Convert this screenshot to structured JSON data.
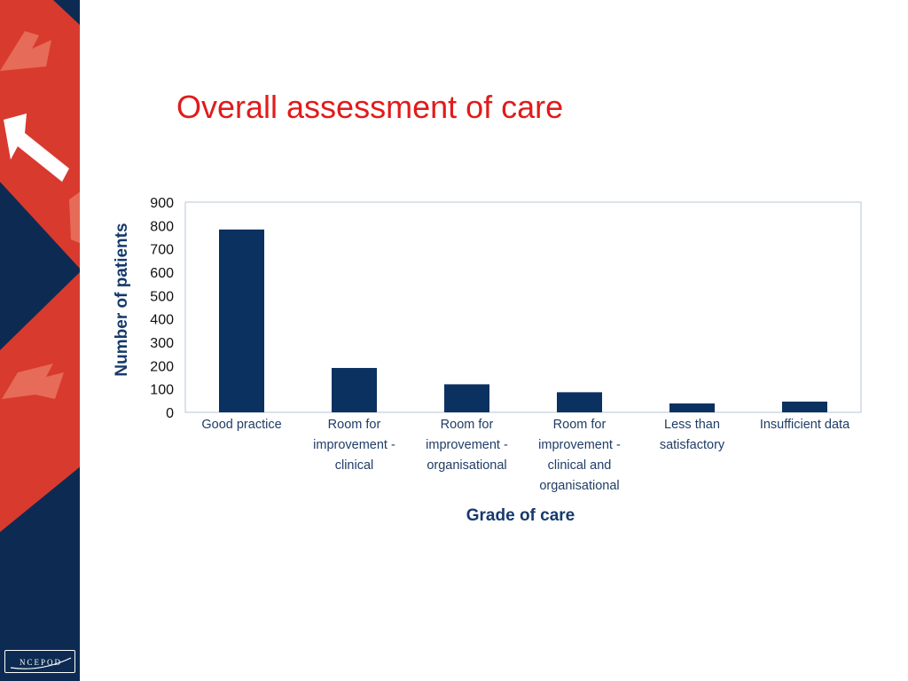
{
  "slide": {
    "title": "Overall assessment of care",
    "logo_text": "NCEPOD"
  },
  "colors": {
    "sidebar_navy": "#0d2b52",
    "sidebar_red": "#d93a2e",
    "title_red": "#e11b1b",
    "bar_navy": "#0a3160",
    "axis_label_navy": "#163a6b"
  },
  "icons": [
    "arrow-up-left-icon",
    "arrow-up-right-icon"
  ],
  "chart_data": {
    "type": "bar",
    "title": "",
    "xlabel": "Grade of care",
    "ylabel": "Number of patients",
    "ylim": [
      0,
      900
    ],
    "yticks": [
      0,
      100,
      200,
      300,
      400,
      500,
      600,
      700,
      800,
      900
    ],
    "grid": false,
    "legend": "none",
    "categories": [
      "Good practice",
      "Room for improvement - clinical",
      "Room for improvement - organisational",
      "Room for improvement - clinical and organisational",
      "Less than satisfactory",
      "Insufficient data"
    ],
    "category_lines": [
      [
        "Good practice"
      ],
      [
        "Room for",
        "improvement -",
        "clinical"
      ],
      [
        "Room for",
        "improvement -",
        "organisational"
      ],
      [
        "Room for",
        "improvement -",
        "clinical and",
        "organisational"
      ],
      [
        "Less than",
        "satisfactory"
      ],
      [
        "Insufficient data"
      ]
    ],
    "values": [
      783,
      190,
      120,
      86,
      38,
      46
    ]
  }
}
